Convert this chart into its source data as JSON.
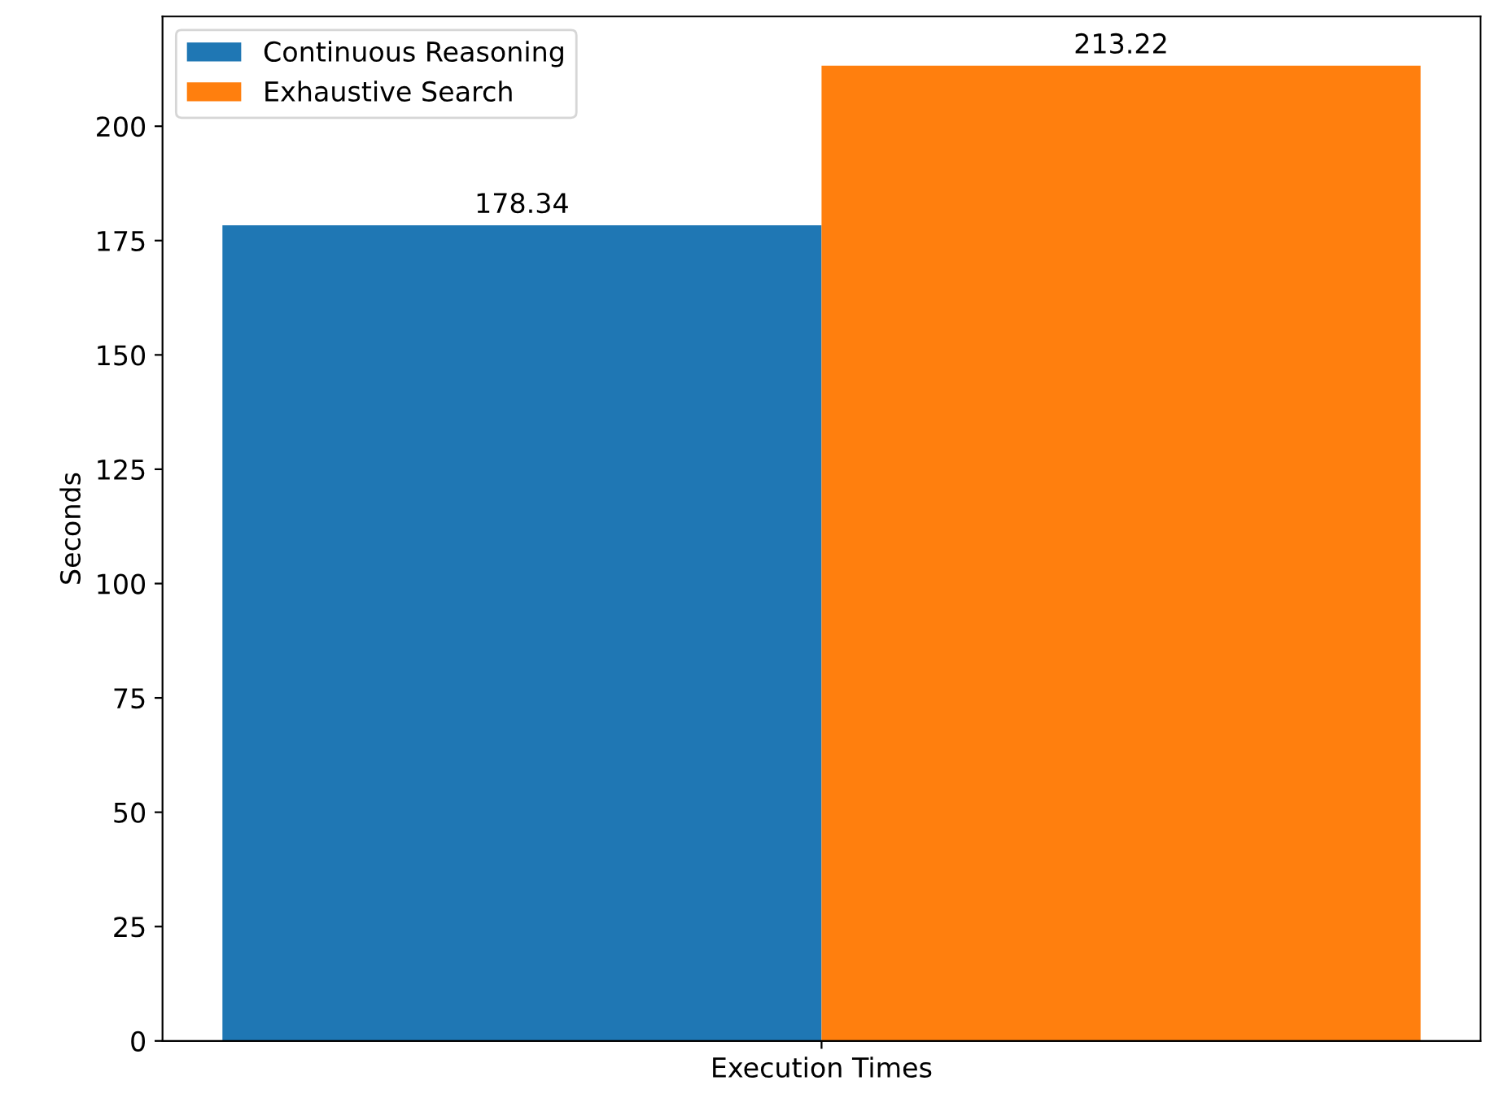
{
  "chart_data": {
    "type": "bar",
    "ylabel": "Seconds",
    "categories": [
      "Execution Times"
    ],
    "series": [
      {
        "name": "Continuous Reasoning",
        "color": "#1f77b4",
        "values": [
          178.34
        ]
      },
      {
        "name": "Exhaustive Search",
        "color": "#ff7f0e",
        "values": [
          213.22
        ]
      }
    ],
    "ylim": [
      0,
      224
    ],
    "yticks": [
      0,
      25,
      50,
      75,
      100,
      125,
      150,
      175,
      200
    ],
    "data_labels": true,
    "legend": "top left",
    "grid": false
  }
}
